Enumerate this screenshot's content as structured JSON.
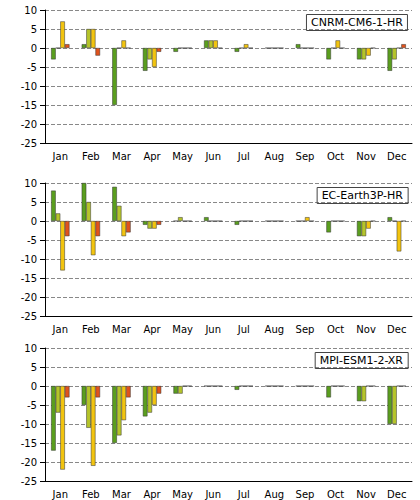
{
  "chart_data": [
    {
      "type": "bar",
      "title": "CNRM-CM6-1-HR",
      "categories": [
        "Jan",
        "Feb",
        "Mar",
        "Apr",
        "May",
        "Jun",
        "Jul",
        "Aug",
        "Sep",
        "Oct",
        "Nov",
        "Dec"
      ],
      "series": [
        {
          "color": "#5a9e1e",
          "values": [
            -3,
            1,
            -15,
            -6,
            -1,
            2,
            -1,
            0,
            1,
            -3,
            -3,
            -6
          ]
        },
        {
          "color": "#b5c42a",
          "values": [
            0,
            5,
            0,
            -3,
            0,
            2,
            0,
            0,
            0,
            0,
            -3,
            -3
          ]
        },
        {
          "color": "#f2c40f",
          "values": [
            7,
            5,
            2,
            -5,
            0,
            2,
            1,
            0,
            0,
            2,
            -2,
            0
          ]
        },
        {
          "color": "#e0521c",
          "values": [
            1,
            -2,
            0,
            -1,
            0,
            0,
            0,
            0,
            0,
            0,
            0,
            1
          ]
        }
      ],
      "ylim": [
        -25,
        10
      ],
      "yticks": [
        -25,
        -20,
        -15,
        -10,
        -5,
        0,
        5,
        10
      ],
      "grid": true
    },
    {
      "type": "bar",
      "title": "EC-Earth3P-HR",
      "categories": [
        "Jan",
        "Feb",
        "Mar",
        "Apr",
        "May",
        "Jun",
        "Jul",
        "Aug",
        "Sep",
        "Oct",
        "Nov",
        "Dec"
      ],
      "series": [
        {
          "color": "#5a9e1e",
          "values": [
            8,
            10,
            9,
            -1,
            0,
            1,
            -1,
            0,
            0,
            -3,
            -4,
            1
          ]
        },
        {
          "color": "#b5c42a",
          "values": [
            2,
            5,
            4,
            -2,
            1,
            0,
            0,
            0,
            0,
            0,
            -4,
            0
          ]
        },
        {
          "color": "#f2c40f",
          "values": [
            -13,
            -9,
            -4,
            -2,
            0,
            0,
            0,
            0,
            1,
            0,
            -2,
            -8
          ]
        },
        {
          "color": "#e0521c",
          "values": [
            -4,
            -4,
            -3,
            -1,
            0,
            0,
            0,
            0,
            0,
            0,
            0,
            0
          ]
        }
      ],
      "ylim": [
        -25,
        10
      ],
      "yticks": [
        -25,
        -20,
        -15,
        -10,
        -5,
        0,
        5,
        10
      ],
      "grid": true
    },
    {
      "type": "bar",
      "title": "MPI-ESM1-2-XR",
      "categories": [
        "Jan",
        "Feb",
        "Mar",
        "Apr",
        "May",
        "Jun",
        "Jul",
        "Aug",
        "Sep",
        "Oct",
        "Nov",
        "Dec"
      ],
      "series": [
        {
          "color": "#5a9e1e",
          "values": [
            -17,
            -5,
            -15,
            -8,
            -2,
            0,
            -1,
            0,
            0,
            -3,
            -4,
            -10
          ]
        },
        {
          "color": "#b5c42a",
          "values": [
            -7,
            -11,
            -13,
            -7,
            -2,
            0,
            0,
            0,
            0,
            0,
            -4,
            -10
          ]
        },
        {
          "color": "#f2c40f",
          "values": [
            -22,
            -21,
            -9,
            -5,
            0,
            0,
            0,
            0,
            0,
            0,
            0,
            0
          ]
        },
        {
          "color": "#e0521c",
          "values": [
            -3,
            -3,
            -3,
            -2,
            0,
            0,
            0,
            0,
            0,
            0,
            0,
            0
          ]
        }
      ],
      "ylim": [
        -25,
        10
      ],
      "yticks": [
        -25,
        -20,
        -15,
        -10,
        -5,
        0,
        5,
        10
      ],
      "grid": true
    }
  ]
}
